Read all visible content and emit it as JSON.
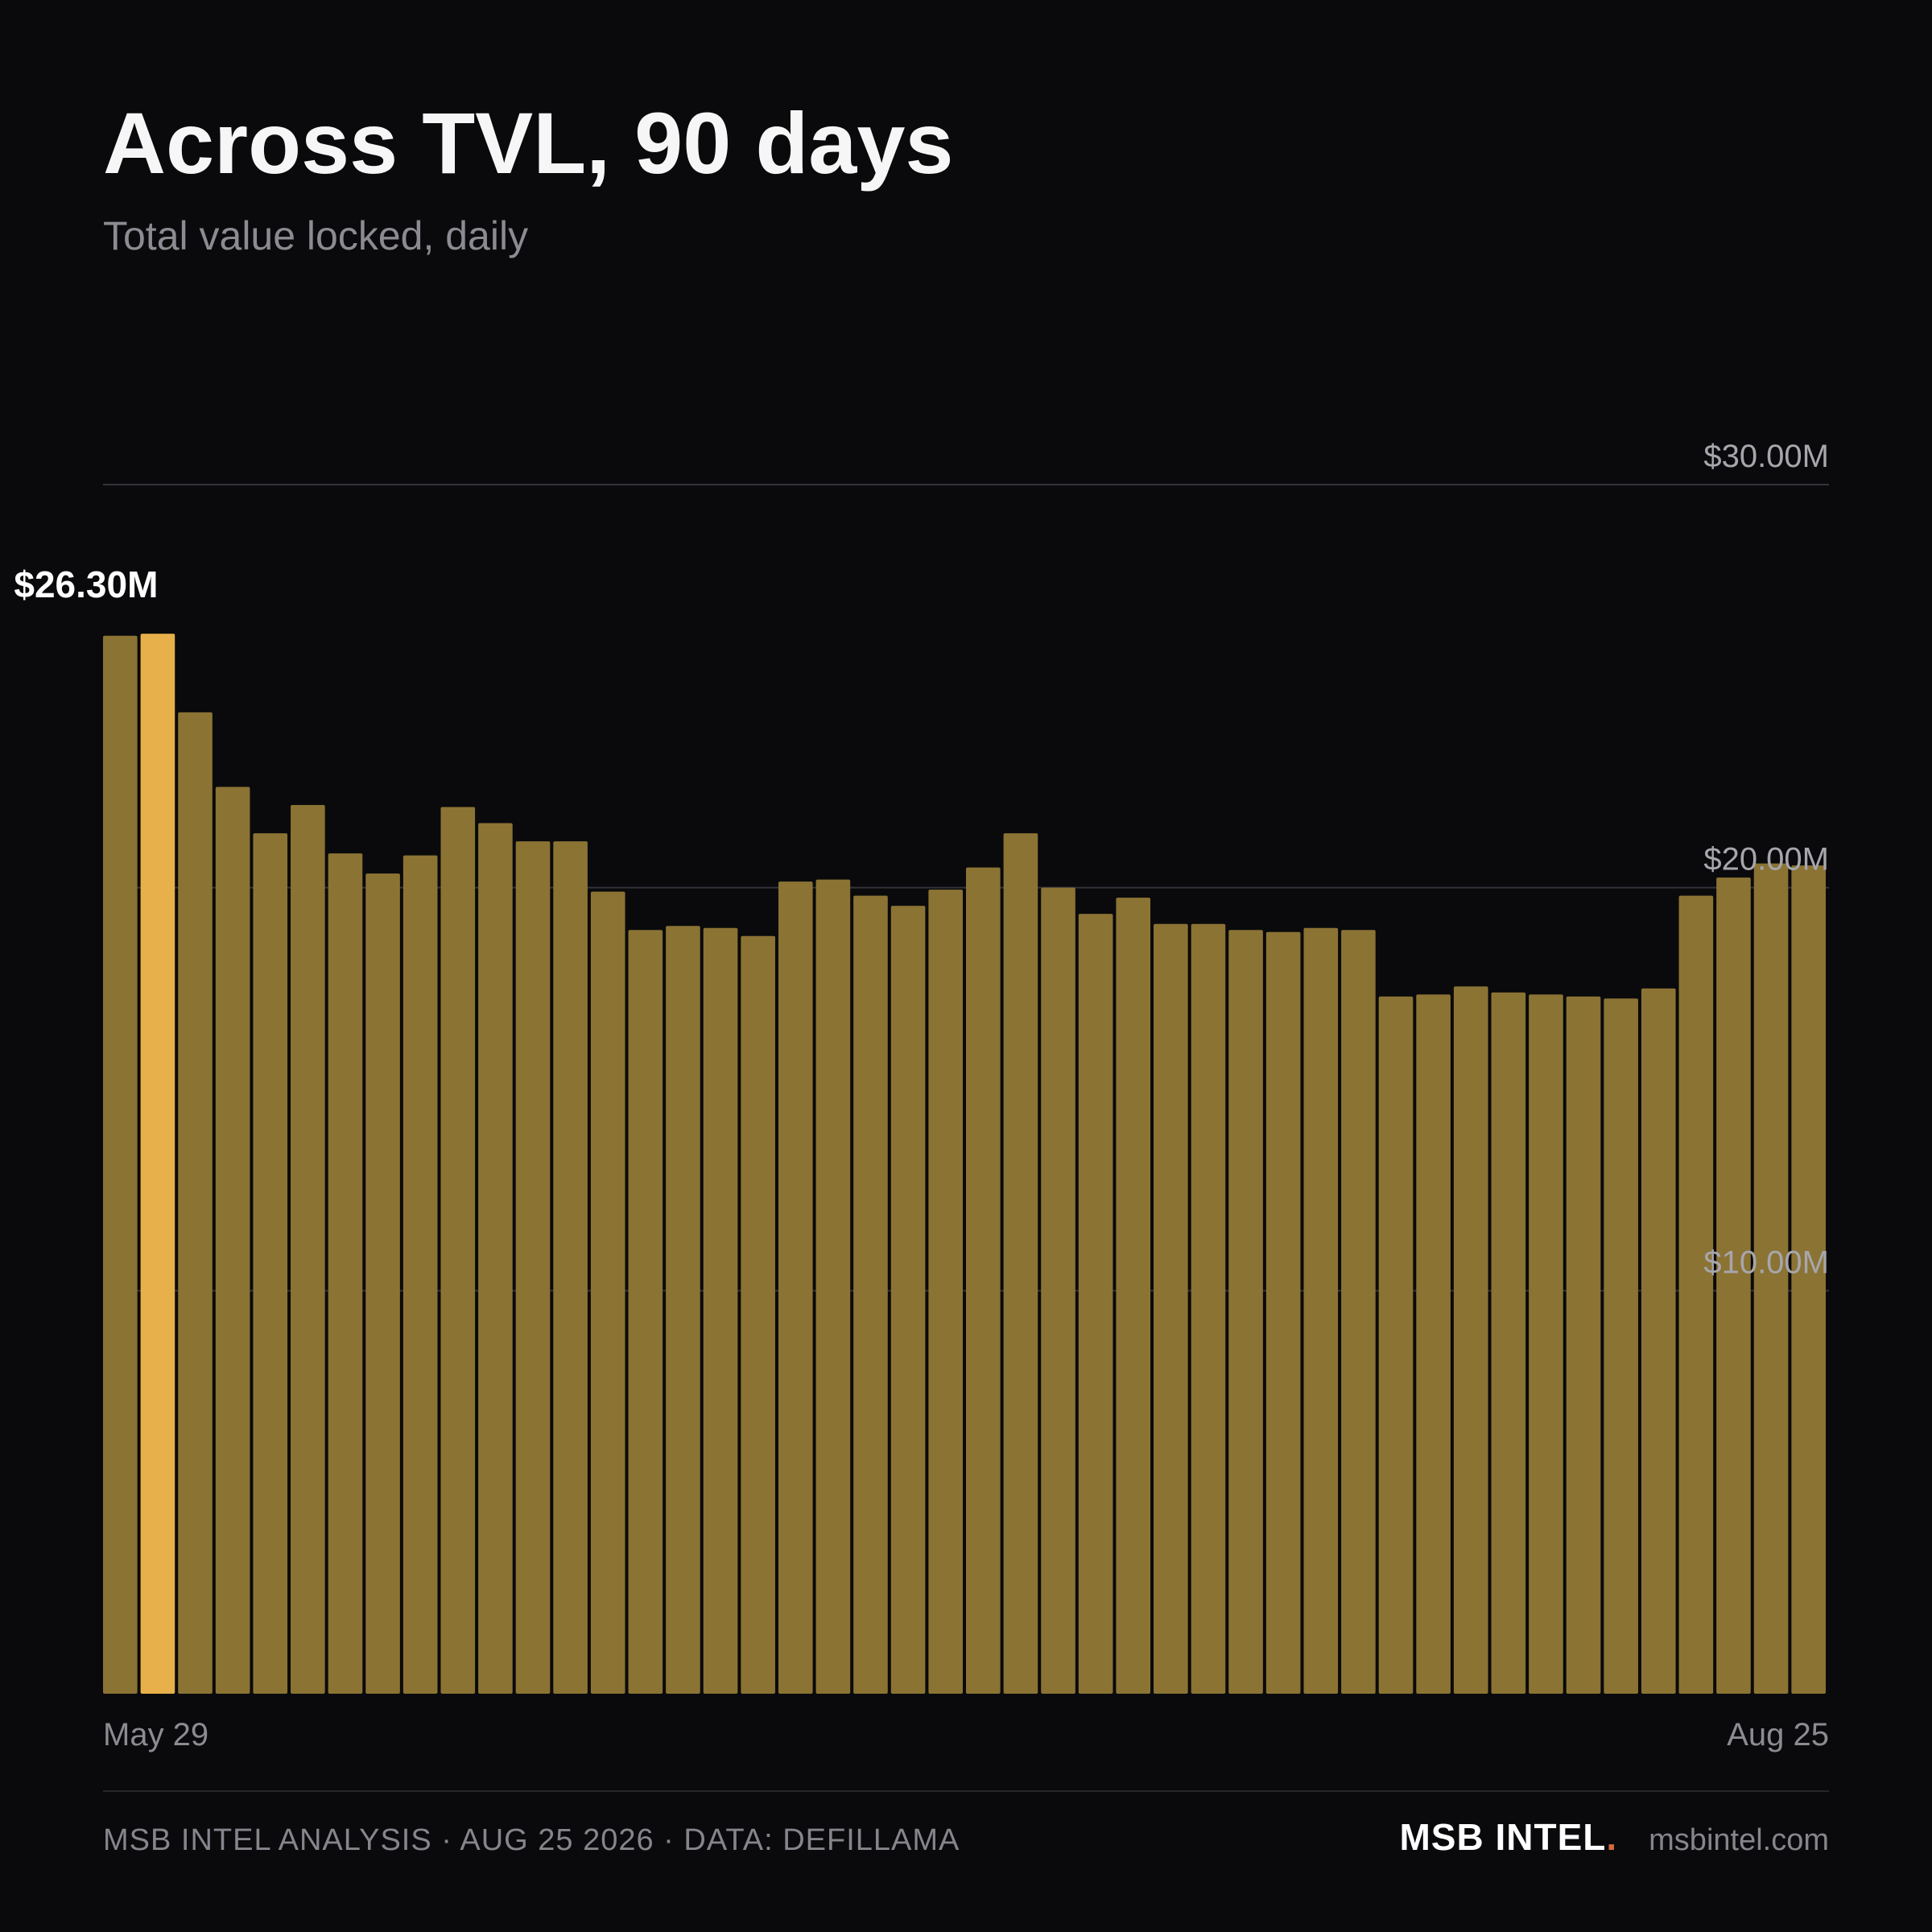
{
  "colors": {
    "background": "#0a0a0c",
    "bar": "#8b7334",
    "highlight_bar": "#e8b04a",
    "gridline": "#33333a",
    "brand_dot": "#d46a3a"
  },
  "chart_data": {
    "type": "bar",
    "title": "Across TVL, 90 days",
    "subtitle": "Total value locked, daily",
    "x_start_label": "May 29",
    "x_end_label": "Aug 25",
    "ylim": [
      0,
      30
    ],
    "y_unit": "$M",
    "y_ticks": [
      {
        "value": 10,
        "label": "$10.00M"
      },
      {
        "value": 20,
        "label": "$20.00M"
      },
      {
        "value": 30,
        "label": "$30.00M"
      }
    ],
    "grid": true,
    "highlight": {
      "index": 1,
      "label": "$26.30M"
    },
    "values": [
      26.25,
      26.3,
      24.35,
      22.5,
      21.35,
      22.05,
      20.85,
      20.35,
      20.8,
      22.0,
      21.6,
      21.15,
      21.15,
      19.9,
      18.95,
      19.05,
      19.0,
      18.8,
      20.15,
      20.2,
      19.8,
      19.55,
      19.95,
      20.5,
      21.35,
      20.0,
      19.35,
      19.75,
      19.1,
      19.1,
      18.95,
      18.9,
      19.0,
      18.95,
      17.3,
      17.35,
      17.55,
      17.4,
      17.35,
      17.3,
      17.25,
      17.5,
      19.8,
      20.25,
      20.6,
      20.55
    ]
  },
  "footer": {
    "source": "MSB INTEL ANALYSIS · AUG 25 2026 · DATA: DEFILLAMA",
    "brand": "MSB INTEL",
    "brand_dot": ".",
    "site": "msbintel.com"
  }
}
